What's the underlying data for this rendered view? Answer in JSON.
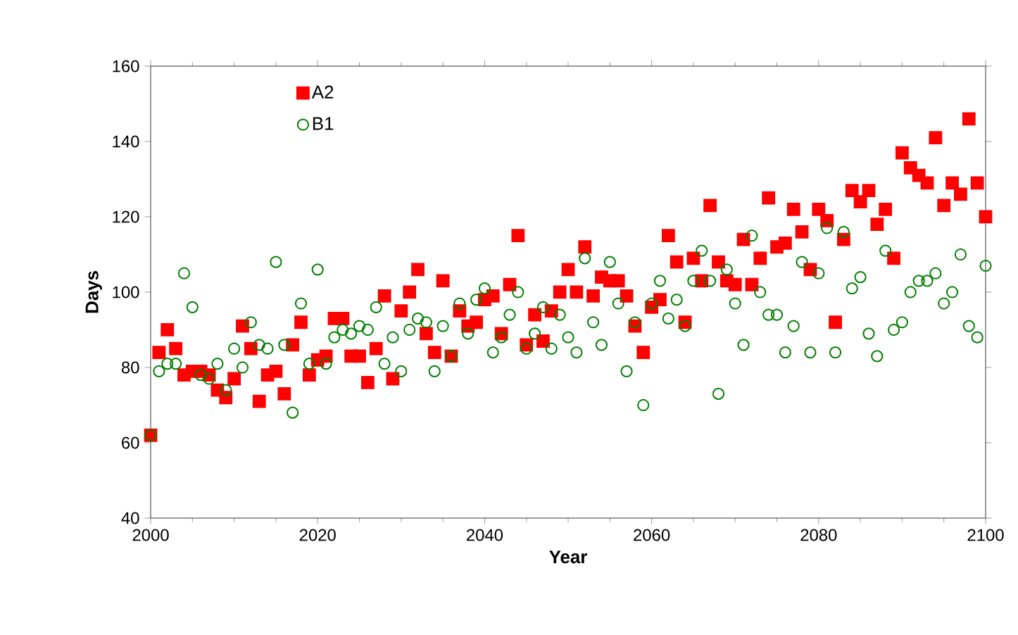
{
  "chart_data": {
    "type": "scatter",
    "xlabel": "Year",
    "ylabel": "Days",
    "x": [
      2000,
      2001,
      2002,
      2003,
      2004,
      2005,
      2006,
      2007,
      2008,
      2009,
      2010,
      2011,
      2012,
      2013,
      2014,
      2015,
      2016,
      2017,
      2018,
      2019,
      2020,
      2021,
      2022,
      2023,
      2024,
      2025,
      2026,
      2027,
      2028,
      2029,
      2030,
      2031,
      2032,
      2033,
      2034,
      2035,
      2036,
      2037,
      2038,
      2039,
      2040,
      2041,
      2042,
      2043,
      2044,
      2045,
      2046,
      2047,
      2048,
      2049,
      2050,
      2051,
      2052,
      2053,
      2054,
      2055,
      2056,
      2057,
      2058,
      2059,
      2060,
      2061,
      2062,
      2063,
      2064,
      2065,
      2066,
      2067,
      2068,
      2069,
      2070,
      2071,
      2072,
      2073,
      2074,
      2075,
      2076,
      2077,
      2078,
      2079,
      2080,
      2081,
      2082,
      2083,
      2084,
      2085,
      2086,
      2087,
      2088,
      2089,
      2090,
      2091,
      2092,
      2093,
      2094,
      2095,
      2096,
      2097,
      2098,
      2099,
      2100
    ],
    "series": [
      {
        "name": "A2",
        "color": "#ff0000",
        "marker": "square",
        "values": [
          62,
          84,
          90,
          85,
          78,
          79,
          79,
          78,
          74,
          72,
          77,
          91,
          85,
          71,
          78,
          79,
          73,
          86,
          92,
          78,
          82,
          83,
          93,
          93,
          83,
          83,
          76,
          85,
          99,
          77,
          95,
          100,
          106,
          89,
          84,
          103,
          83,
          95,
          91,
          92,
          98,
          99,
          89,
          102,
          115,
          86,
          94,
          87,
          95,
          100,
          106,
          100,
          112,
          99,
          104,
          103,
          103,
          99,
          91,
          84,
          96,
          98,
          115,
          108,
          92,
          109,
          103,
          123,
          108,
          103,
          102,
          114,
          102,
          109,
          125,
          112,
          113,
          122,
          116,
          106,
          122,
          119,
          92,
          114,
          127,
          124,
          127,
          118,
          122,
          109,
          137,
          133,
          131,
          129,
          141,
          123,
          129,
          126,
          146,
          129,
          120
        ]
      },
      {
        "name": "B1",
        "color": "#008000",
        "marker": "circle",
        "values": [
          62,
          79,
          81,
          81,
          105,
          96,
          78,
          77,
          81,
          74,
          85,
          80,
          92,
          86,
          85,
          108,
          86,
          68,
          97,
          81,
          106,
          81,
          88,
          90,
          89,
          91,
          90,
          96,
          81,
          88,
          79,
          90,
          93,
          92,
          79,
          91,
          83,
          97,
          89,
          98,
          101,
          84,
          88,
          94,
          100,
          85,
          89,
          96,
          85,
          94,
          88,
          84,
          109,
          92,
          86,
          108,
          97,
          79,
          92,
          70,
          97,
          103,
          93,
          98,
          91,
          103,
          111,
          103,
          73,
          106,
          97,
          86,
          115,
          100,
          94,
          94,
          84,
          91,
          108,
          84,
          105,
          117,
          84,
          116,
          101,
          104,
          89,
          83,
          111,
          90,
          92,
          100,
          103,
          103,
          105,
          97,
          100,
          110,
          91,
          88,
          107
        ]
      }
    ],
    "xlim": [
      2000,
      2100
    ],
    "xticks": [
      2000,
      2020,
      2040,
      2060,
      2080,
      2100
    ],
    "ylim": [
      40,
      160
    ],
    "yticks": [
      40,
      60,
      80,
      100,
      120,
      140,
      160
    ],
    "grid": false,
    "legend": "top left"
  }
}
